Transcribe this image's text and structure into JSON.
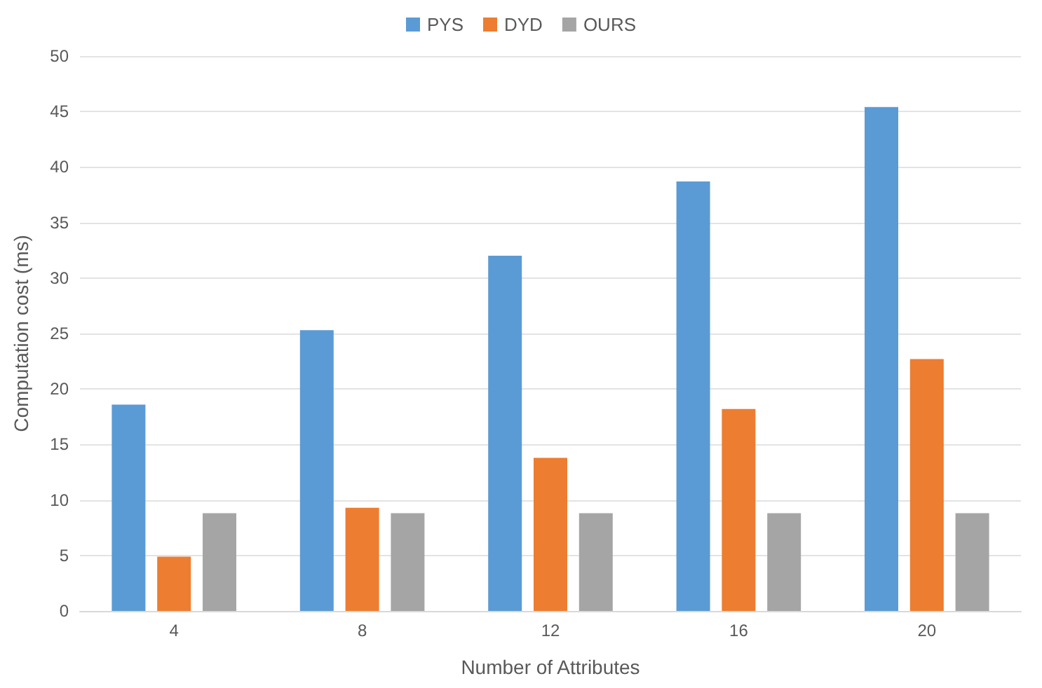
{
  "chart_data": {
    "type": "bar",
    "xlabel": "Number of Attributes",
    "ylabel": "Computation cost (ms)",
    "categories": [
      "4",
      "8",
      "12",
      "16",
      "20"
    ],
    "series": [
      {
        "name": "PYS",
        "color": "#5b9bd5",
        "values": [
          18.6,
          25.3,
          32.0,
          38.7,
          45.4
        ]
      },
      {
        "name": "DYD",
        "color": "#ed7d31",
        "values": [
          4.9,
          9.3,
          13.8,
          18.2,
          22.7
        ]
      },
      {
        "name": "OURS",
        "color": "#a5a5a5",
        "values": [
          8.8,
          8.8,
          8.8,
          8.8,
          8.8
        ]
      }
    ],
    "ylim": [
      0,
      50
    ],
    "yticks": [
      0,
      5,
      10,
      15,
      20,
      25,
      30,
      35,
      40,
      45,
      50
    ],
    "grid": "y",
    "legend": "top"
  }
}
